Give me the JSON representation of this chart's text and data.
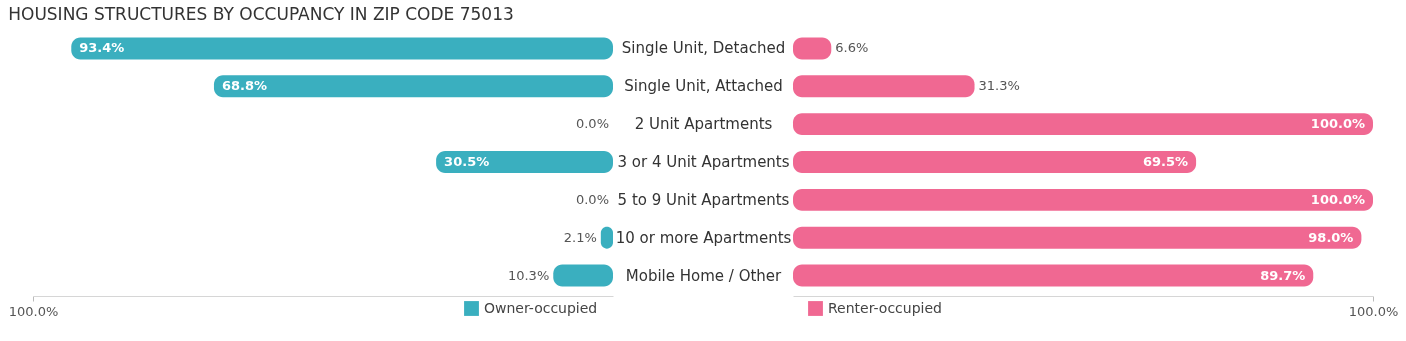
{
  "chart_data": [
    {
      "type": "bar",
      "orientation": "horizontal",
      "title": "HOUSING STRUCTURES BY OCCUPANCY IN ZIP CODE 75013",
      "categories": [
        "Single Unit, Detached",
        "Single Unit, Attached",
        "2 Unit Apartments",
        "3 or 4 Unit Apartments",
        "5 to 9 Unit Apartments",
        "10 or more Apartments",
        "Mobile Home / Other"
      ],
      "series": [
        {
          "name": "Owner-occupied",
          "color": "#3aafbf",
          "values": [
            93.4,
            68.8,
            0.0,
            30.5,
            0.0,
            2.1,
            10.3
          ],
          "value_labels": [
            "93.4%",
            "68.8%",
            "0.0%",
            "30.5%",
            "0.0%",
            "2.1%",
            "10.3%"
          ]
        }
      ],
      "xlim": [
        100,
        0
      ],
      "xticks": [
        {
          "value": 100,
          "label": "100.0%"
        }
      ],
      "legend": "bottom right"
    },
    {
      "type": "bar",
      "orientation": "horizontal",
      "categories": [
        null,
        null,
        null,
        null,
        null,
        null,
        null
      ],
      "series": [
        {
          "name": "Renter-occupied",
          "color": "#f06892",
          "values": [
            6.6,
            31.3,
            100.0,
            69.5,
            100.0,
            98.0,
            89.7
          ],
          "value_labels": [
            "6.6%",
            "31.3%",
            "100.0%",
            "69.5%",
            "100.0%",
            "98.0%",
            "89.7%"
          ]
        }
      ],
      "xlim": [
        0,
        100
      ],
      "xticks": [
        {
          "value": 100,
          "label": "100.0%"
        }
      ],
      "tick_labels": "x",
      "legend": "bottom left"
    }
  ]
}
